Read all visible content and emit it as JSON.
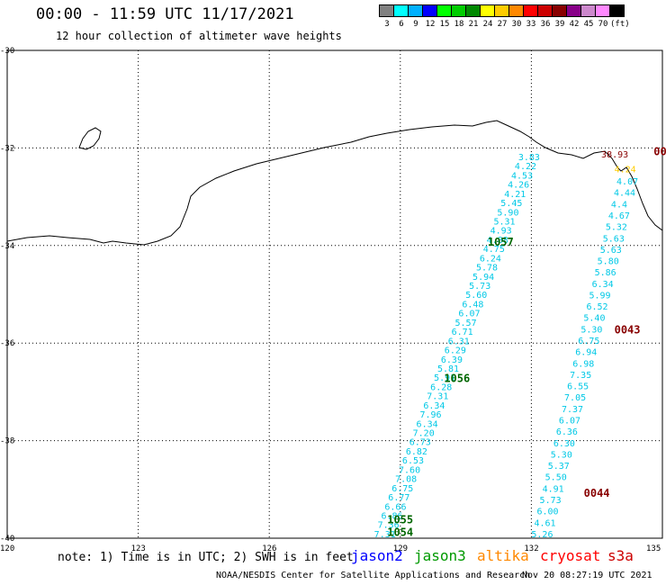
{
  "header": {
    "title": "00:00 - 11:59 UTC 11/17/2021",
    "subtitle": "12 hour collection of altimeter wave heights"
  },
  "legend": {
    "colors": [
      "#808080",
      "#00ffff",
      "#00b0ff",
      "#0000ff",
      "#00ff00",
      "#00cc00",
      "#008800",
      "#ffff00",
      "#ffcc00",
      "#ff8800",
      "#ff0000",
      "#cc0000",
      "#880000",
      "#880088",
      "#cc88cc",
      "#ff88ff",
      "#000000"
    ],
    "labels": [
      "3",
      "6",
      "9",
      "12",
      "15",
      "18",
      "21",
      "24",
      "27",
      "30",
      "33",
      "36",
      "39",
      "42",
      "45",
      "70",
      "(ft)"
    ]
  },
  "axes": {
    "lon_labels": [
      "120",
      "123",
      "126",
      "129",
      "132",
      "135"
    ],
    "lat_labels": [
      "-30",
      "-32",
      "-34",
      "-36",
      "-38",
      "-40"
    ]
  },
  "pass_labels": [
    {
      "id": "1057",
      "lon": 131.0,
      "lat": -34.0,
      "color": "#006600"
    },
    {
      "id": "1056",
      "lon": 130.0,
      "lat": -36.8,
      "color": "#006600"
    },
    {
      "id": "1055",
      "lon": 128.7,
      "lat": -39.7,
      "color": "#006600"
    },
    {
      "id": "1054",
      "lon": 128.7,
      "lat": -39.95,
      "color": "#006600"
    },
    {
      "id": "0043",
      "lon": 133.9,
      "lat": -35.8,
      "color": "#880000"
    },
    {
      "id": "0044",
      "lon": 133.2,
      "lat": -39.15,
      "color": "#880000"
    },
    {
      "id": "00",
      "lon": 134.8,
      "lat": -32.15,
      "color": "#880000"
    }
  ],
  "track_a": [
    "3.83",
    "4.22",
    "4.53",
    "4.26",
    "4.21",
    "5.45",
    "5.90",
    "5.31",
    "4.93",
    "4.88",
    "4.75",
    "6.24",
    "5.78",
    "5.94",
    "5.73",
    "5.60",
    "6.48",
    "6.07",
    "5.57",
    "6.71",
    "6.31",
    "6.29",
    "6.39",
    "5.81",
    "5.91",
    "6.28",
    "7.31",
    "6.34",
    "7.96",
    "6.34",
    "7.20",
    "6.73",
    "6.82",
    "6.53",
    "7.60",
    "7.08",
    "6.75",
    "6.77",
    "6.66",
    "6.86",
    "7.36",
    "7.31"
  ],
  "track_b": [
    "4.07",
    "4.44",
    "4.4",
    "4.67",
    "5.32",
    "5.63",
    "5.63",
    "5.80",
    "5.86",
    "6.34",
    "5.99",
    "6.52",
    "5.40",
    "5.30",
    "6.75",
    "6.94",
    "6.98",
    "7.35",
    "6.55",
    "7.05",
    "7.37",
    "6.07",
    "6.36",
    "6.30",
    "5.30",
    "5.37",
    "5.50",
    "4.91",
    "5.73",
    "6.00",
    "4.61",
    "5.26"
  ],
  "coast_values": [
    {
      "text": "38.93",
      "lon": 133.6,
      "lat": -32.2,
      "color": "#880000"
    },
    {
      "text": "4.24",
      "lon": 133.9,
      "lat": -32.5,
      "color": "#ffcc00"
    }
  ],
  "footer": {
    "note": "note: 1) Time is in UTC; 2) SWH is in feet",
    "satellites": [
      {
        "name": "jason2",
        "color": "#0000ff"
      },
      {
        "name": "jason3",
        "color": "#009900"
      },
      {
        "name": "altika",
        "color": "#ff8800"
      },
      {
        "name": "cryosat",
        "color": "#ff0000"
      },
      {
        "name": "s3a",
        "color": "#cc0000"
      }
    ],
    "credit": "NOAA/NESDIS Center for Satellite Applications and Research",
    "timestamp": "Nov 20 08:27:19 UTC 2021"
  }
}
